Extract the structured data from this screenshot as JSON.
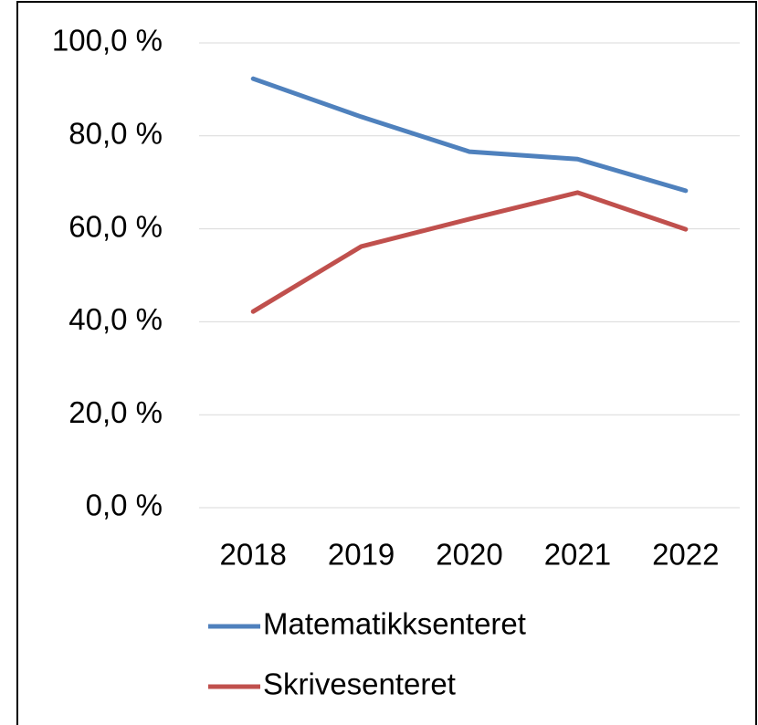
{
  "chart_data": {
    "type": "line",
    "categories": [
      "2018",
      "2019",
      "2020",
      "2021",
      "2022"
    ],
    "series": [
      {
        "name": "Matematikksenteret",
        "color": "#4f81bd",
        "values": [
          92.3,
          84.1,
          76.6,
          75.0,
          68.2
        ]
      },
      {
        "name": "Skrivesenteret",
        "color": "#c0504d",
        "values": [
          42.2,
          56.2,
          62.1,
          67.8,
          59.9
        ]
      }
    ],
    "ylim": [
      0,
      100
    ],
    "yticks": [
      {
        "value": 0,
        "label": "0,0 %"
      },
      {
        "value": 20,
        "label": "20,0 %"
      },
      {
        "value": 40,
        "label": "40,0 %"
      },
      {
        "value": 60,
        "label": "60,0 %"
      },
      {
        "value": 80,
        "label": "80,0 %"
      },
      {
        "value": 100,
        "label": "100,0 %"
      }
    ],
    "grid": true,
    "legend": "bottom"
  }
}
